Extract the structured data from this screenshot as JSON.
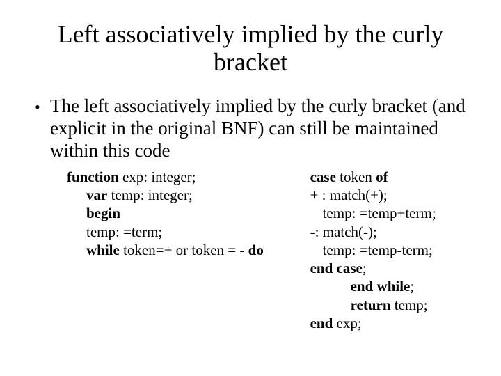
{
  "title": "Left associatively implied by the curly bracket",
  "bullet": "The left associatively implied by the curly bracket (and explicit in the original BNF) can still be maintained within this code",
  "left": {
    "l1a": "function",
    "l1b": " exp: integer;",
    "l2a": "var",
    "l2b": " temp: integer;",
    "l3": "begin",
    "l4": "temp: =term;",
    "l5a": "while",
    "l5b": " token=+ or token = - ",
    "l5c": "do"
  },
  "right": {
    "r1a": "case",
    "r1b": " token ",
    "r1c": "of",
    "r2": "+ : match(+);",
    "r3": "temp: =temp+term;",
    "r4": "-: match(-);",
    "r5": "temp: =temp-term;",
    "r6a": "end case",
    "r6b": ";",
    "r7a": "end while",
    "r7b": ";",
    "r8a": "return",
    "r8b": " temp;",
    "r9a": "end",
    "r9b": " exp;"
  },
  "style": {
    "background": "#ffffff",
    "text_color": "#000000",
    "font_family": "Times New Roman",
    "title_fontsize": 36,
    "body_fontsize": 27,
    "code_fontsize": 21
  }
}
